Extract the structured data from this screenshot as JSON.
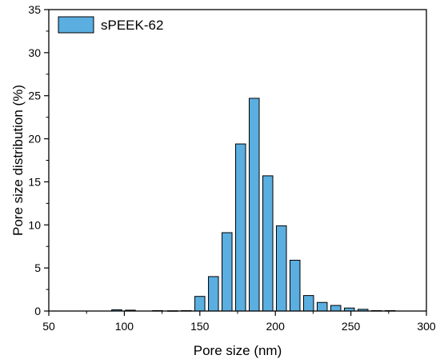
{
  "chart_data": {
    "type": "bar",
    "xlabel": "Pore size (nm)",
    "ylabel": "Pore size distribution (%)",
    "xlim": [
      50,
      300
    ],
    "ylim": [
      0,
      35
    ],
    "xticks": [
      "50",
      "100",
      "150",
      "200",
      "250",
      "300"
    ],
    "yticks": [
      "0",
      "5",
      "10",
      "15",
      "20",
      "25",
      "30",
      "35"
    ],
    "grid": false,
    "legend_position": "top-left",
    "bar_color": "#5aaee0",
    "edge_color": "#000000",
    "series": [
      {
        "name": "sPEEK-62",
        "x": [
          95,
          104,
          122,
          132,
          141,
          150,
          159,
          168,
          177,
          186,
          195,
          204,
          213,
          222,
          231,
          240,
          249,
          258,
          267,
          276
        ],
        "values": [
          0.15,
          0.1,
          0.05,
          0.03,
          0.05,
          1.7,
          4.0,
          9.1,
          19.4,
          24.7,
          15.7,
          9.9,
          5.9,
          1.8,
          1.0,
          0.65,
          0.35,
          0.2,
          0.05,
          0.05
        ]
      }
    ]
  }
}
